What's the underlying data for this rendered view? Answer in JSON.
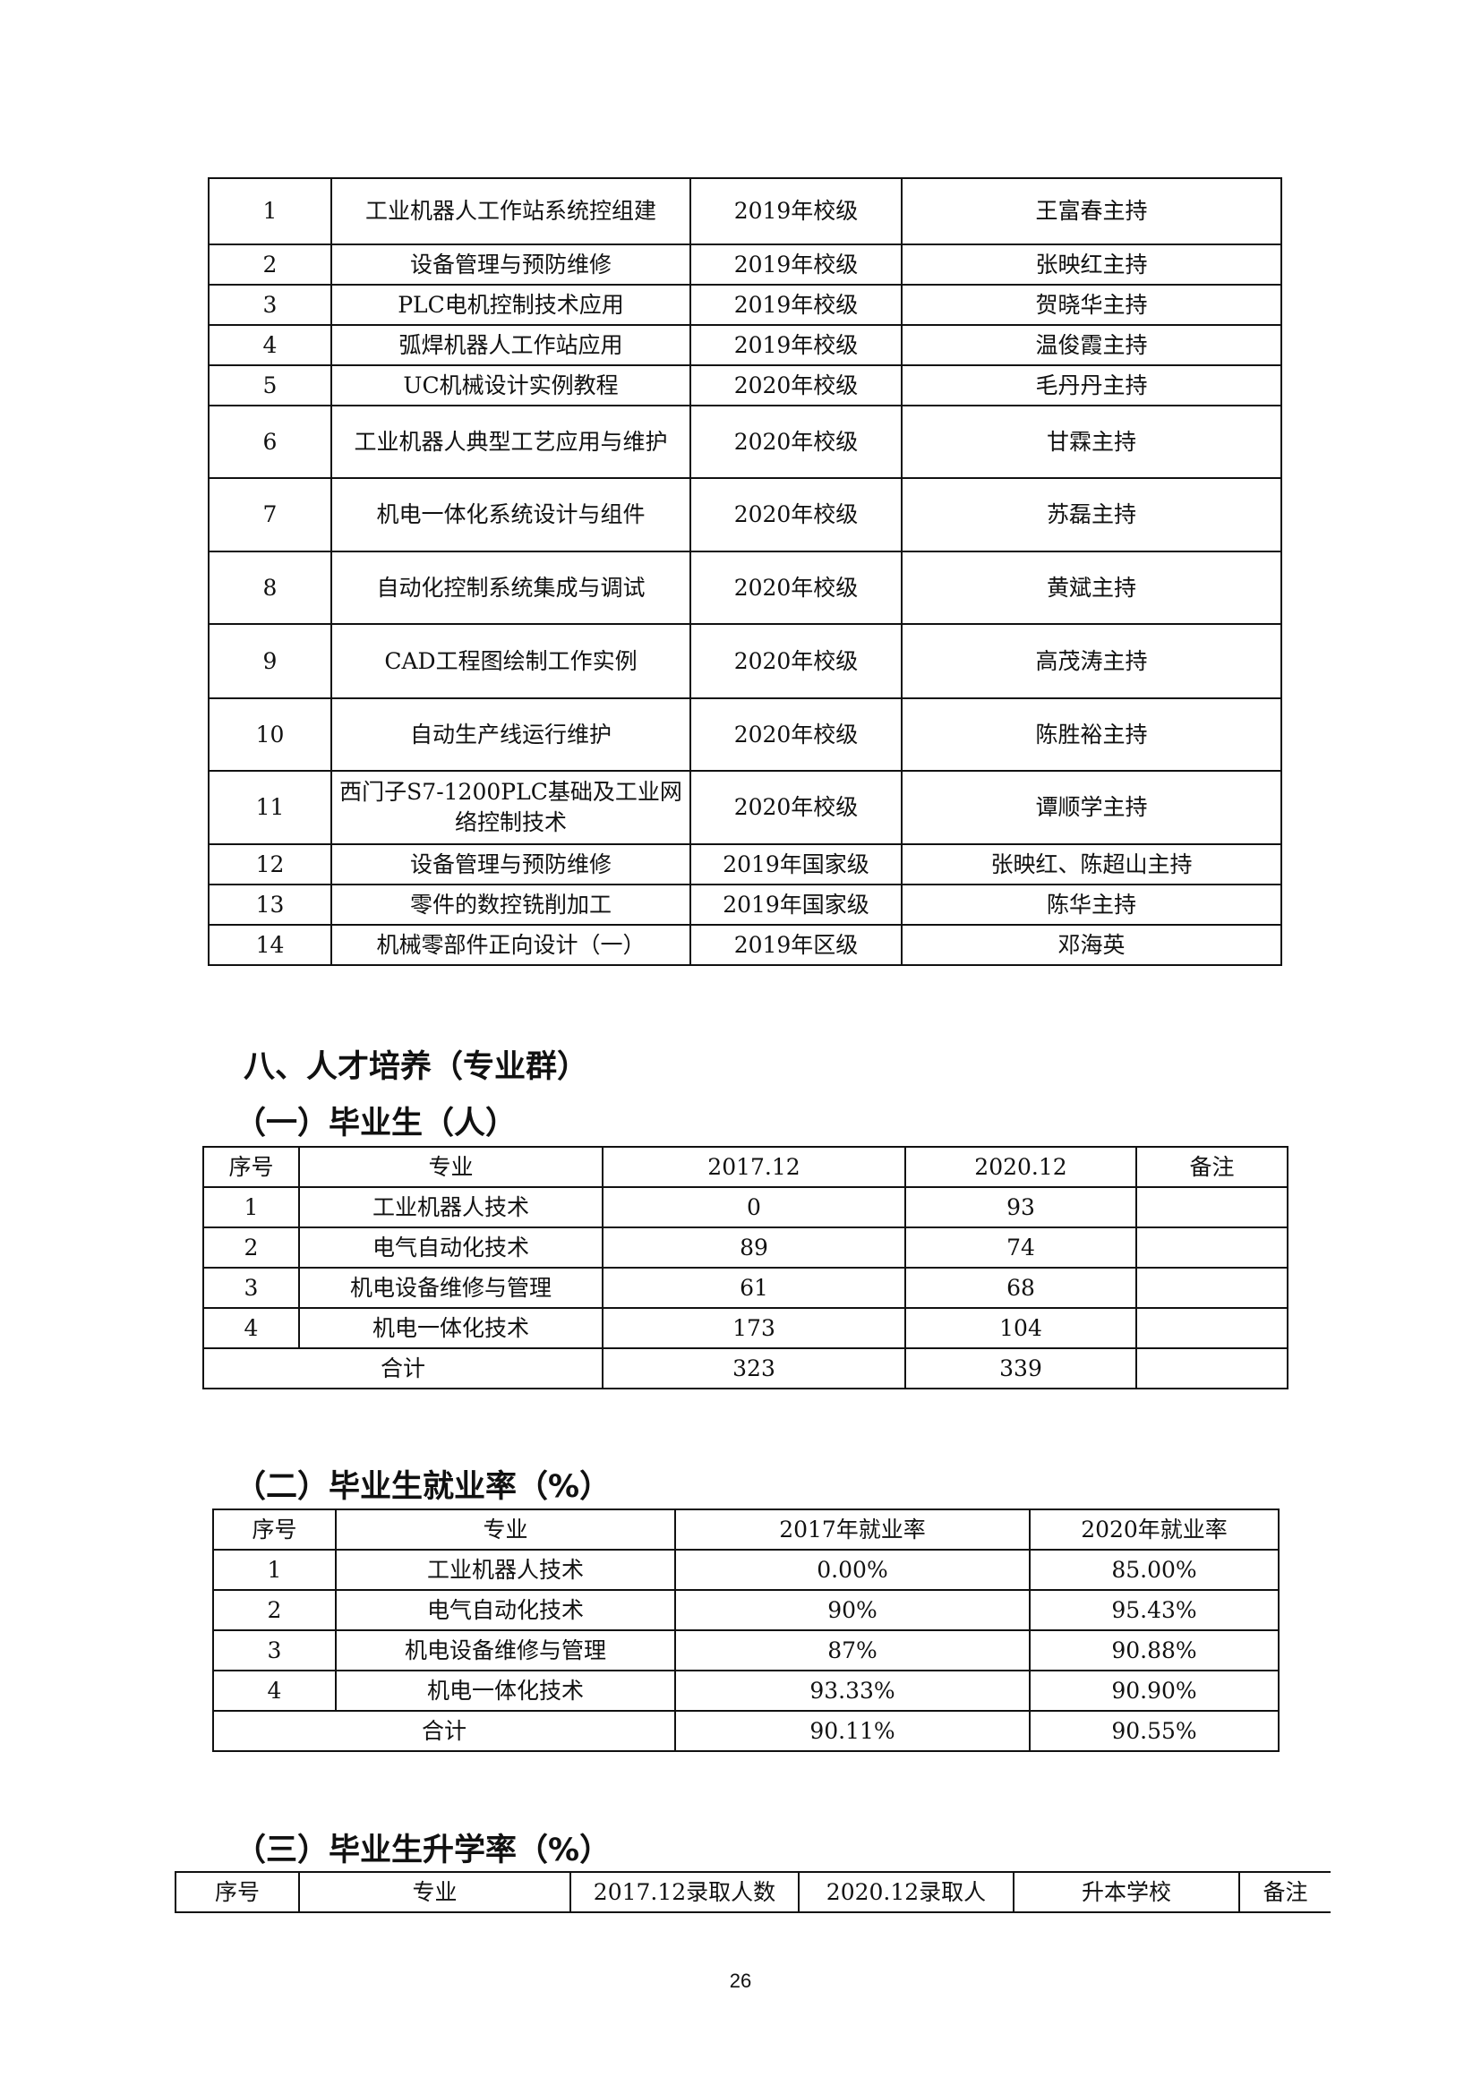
{
  "textbook_table": {
    "rows": [
      [
        "1",
        "工业机器人工作站系统控组建",
        "2019年校级",
        "王富春主持"
      ],
      [
        "2",
        "设备管理与预防维修",
        "2019年校级",
        "张映红主持"
      ],
      [
        "3",
        "PLC电机控制技术应用",
        "2019年校级",
        "贺晓华主持"
      ],
      [
        "4",
        "弧焊机器人工作站应用",
        "2019年校级",
        "温俊霞主持"
      ],
      [
        "5",
        "UC机械设计实例教程",
        "2020年校级",
        "毛丹丹主持"
      ],
      [
        "6",
        "工业机器人典型工艺应用与维护",
        "2020年校级",
        "甘霖主持"
      ],
      [
        "7",
        "机电一体化系统设计与组件",
        "2020年校级",
        "苏磊主持"
      ],
      [
        "8",
        "自动化控制系统集成与调试",
        "2020年校级",
        "黄斌主持"
      ],
      [
        "9",
        "CAD工程图绘制工作实例",
        "2020年校级",
        "高茂涛主持"
      ],
      [
        "10",
        "自动生产线运行维护",
        "2020年校级",
        "陈胜裕主持"
      ],
      [
        "11",
        "西门子S7-1200PLC基础及工业网络控制技术",
        "2020年校级",
        "谭顺学主持"
      ],
      [
        "12",
        "设备管理与预防维修",
        "2019年国家级",
        "张映红、陈超山主持"
      ],
      [
        "13",
        "零件的数控铣削加工",
        "2019年国家级",
        "陈华主持"
      ],
      [
        "14",
        "机械零部件正向设计（一）",
        "2019年区级",
        "邓海英"
      ]
    ]
  },
  "section_title": "八、人才培养（专业群）",
  "graduates": {
    "title": "（一）毕业生（人）",
    "headers": [
      "序号",
      "专业",
      "2017.12",
      "2020.12",
      "备注"
    ],
    "rows": [
      [
        "1",
        "工业机器人技术",
        "0",
        "93",
        ""
      ],
      [
        "2",
        "电气自动化技术",
        "89",
        "74",
        ""
      ],
      [
        "3",
        "机电设备维修与管理",
        "61",
        "68",
        ""
      ],
      [
        "4",
        "机电一体化技术",
        "173",
        "104",
        ""
      ]
    ],
    "total": [
      "合计",
      "323",
      "339",
      ""
    ]
  },
  "employment": {
    "title": "（二）毕业生就业率（%）",
    "headers": [
      "序号",
      "专业",
      "2017年就业率",
      "2020年就业率"
    ],
    "rows": [
      [
        "1",
        "工业机器人技术",
        "0.00%",
        "85.00%"
      ],
      [
        "2",
        "电气自动化技术",
        "90%",
        "95.43%"
      ],
      [
        "3",
        "机电设备维修与管理",
        "87%",
        "90.88%"
      ],
      [
        "4",
        "机电一体化技术",
        "93.33%",
        "90.90%"
      ]
    ],
    "total": [
      "合计",
      "90.11%",
      "90.55%"
    ]
  },
  "further_study": {
    "title": "（三）毕业生升学率（%）",
    "headers": [
      "序号",
      "专业",
      "2017.12录取人数",
      "2020.12录取人",
      "升本学校",
      "备注"
    ]
  },
  "page_number": "26"
}
